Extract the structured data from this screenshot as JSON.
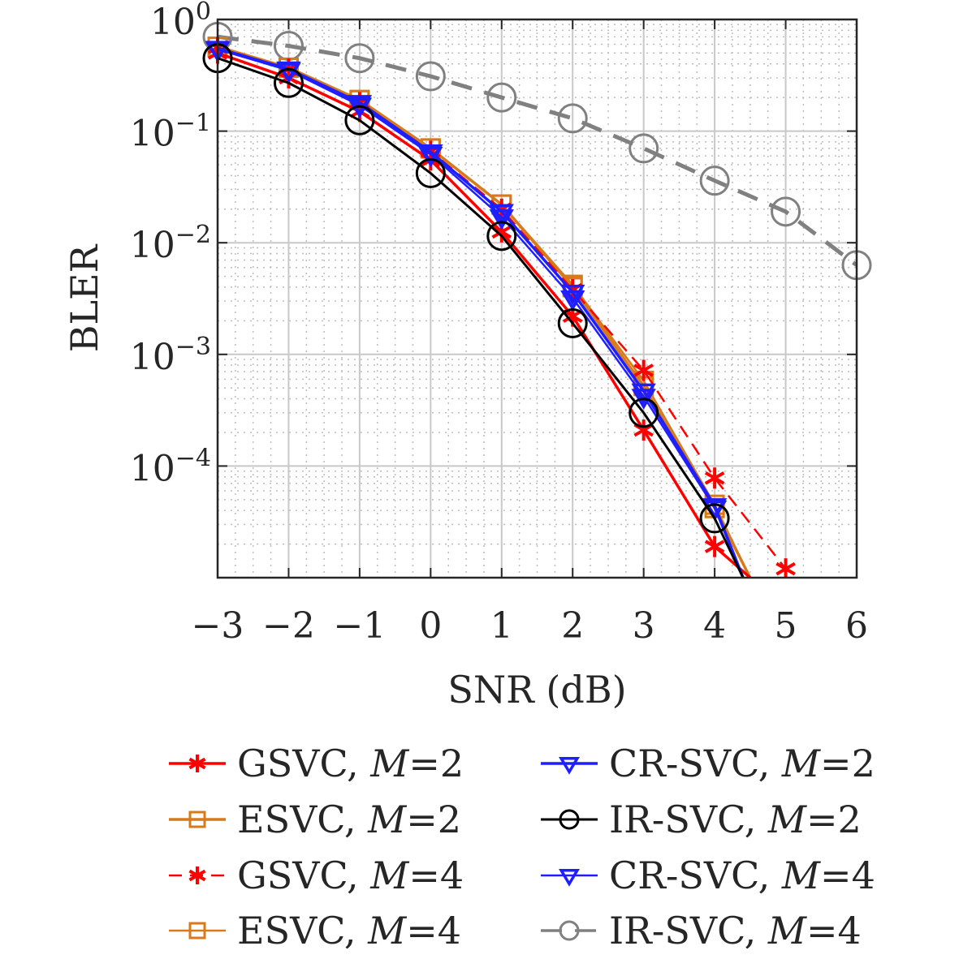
{
  "chart_data": {
    "type": "line",
    "xlabel": "SNR (dB)",
    "ylabel": "BLER",
    "x_ticks": [
      "−3",
      "−2",
      "−1",
      "0",
      "1",
      "2",
      "3",
      "4",
      "5",
      "6"
    ],
    "x_tick_values": [
      -3,
      -2,
      -1,
      0,
      1,
      2,
      3,
      4,
      5,
      6
    ],
    "y_ticks": [
      {
        "base": "10",
        "exp": "0"
      },
      {
        "base": "10",
        "exp": "−1"
      },
      {
        "base": "10",
        "exp": "−2"
      },
      {
        "base": "10",
        "exp": "−3"
      },
      {
        "base": "10",
        "exp": "−4"
      }
    ],
    "y_tick_values": [
      1,
      0.1,
      0.01,
      0.001,
      0.0001
    ],
    "xlim": [
      -3,
      6
    ],
    "ylim": [
      1e-05,
      1
    ],
    "y_scale": "log",
    "grid": true,
    "minor_grid": true,
    "legend_placement": "below",
    "series": [
      {
        "name": "GSVC, ",
        "m_label": "M",
        "m_value": "=2",
        "color": "#ff0000",
        "dash": "solid",
        "marker": "asterisk",
        "width": 3.5,
        "x": [
          -3,
          -2,
          -1,
          0,
          1,
          2,
          3,
          4,
          4.5
        ],
        "y": [
          0.5,
          0.3,
          0.15,
          0.055,
          0.0125,
          0.0022,
          0.00021,
          1.9e-05,
          1e-05
        ]
      },
      {
        "name": "ESVC, ",
        "m_label": "M",
        "m_value": "=2",
        "color": "#d97a1a",
        "dash": "solid",
        "marker": "square",
        "width": 3.5,
        "x": [
          -3,
          -2,
          -1,
          0,
          1,
          2,
          3,
          4,
          4.5
        ],
        "y": [
          0.57,
          0.37,
          0.19,
          0.07,
          0.022,
          0.004,
          0.00052,
          4.2e-05,
          1e-05
        ]
      },
      {
        "name": "GSVC, ",
        "m_label": "M",
        "m_value": "=4",
        "color": "#ff0000",
        "dash": "dash",
        "marker": "asterisk",
        "width": 2.5,
        "x": [
          -3,
          -2,
          -1,
          0,
          1,
          2,
          3,
          4,
          5
        ],
        "y": [
          0.56,
          0.36,
          0.18,
          0.066,
          0.02,
          0.0038,
          0.00072,
          7.8e-05,
          1.2e-05
        ]
      },
      {
        "name": "ESVC, ",
        "m_label": "M",
        "m_value": "=4",
        "color": "#d97a1a",
        "dash": "solid",
        "marker": "square",
        "width": 2.5,
        "x": [
          -3,
          -2,
          -1,
          0,
          1,
          2,
          3,
          4,
          4.5
        ],
        "y": [
          0.57,
          0.37,
          0.19,
          0.07,
          0.022,
          0.0042,
          0.00058,
          4.5e-05,
          1e-05
        ]
      },
      {
        "name": "CR-SVC, ",
        "m_label": "M",
        "m_value": "=2",
        "color": "#1e1eff",
        "dash": "solid",
        "marker": "triangle-down",
        "width": 3.5,
        "x": [
          -3,
          -2,
          -1,
          0,
          1,
          2,
          3,
          4,
          4.4
        ],
        "y": [
          0.55,
          0.36,
          0.18,
          0.065,
          0.019,
          0.0036,
          0.00047,
          4.4e-05,
          1e-05
        ]
      },
      {
        "name": "IR-SVC, ",
        "m_label": "M",
        "m_value": "=2",
        "color": "#000000",
        "dash": "solid",
        "marker": "circle",
        "width": 3,
        "x": [
          -3,
          -2,
          -1,
          0,
          1,
          2,
          3,
          4,
          4.4
        ],
        "y": [
          0.45,
          0.27,
          0.125,
          0.042,
          0.0115,
          0.0019,
          0.0003,
          3.4e-05,
          1e-05
        ]
      },
      {
        "name": "CR-SVC, ",
        "m_label": "M",
        "m_value": "=4",
        "color": "#1e1eff",
        "dash": "solid",
        "marker": "triangle-down",
        "width": 2.5,
        "x": [
          -3,
          -2,
          -1,
          0,
          1,
          2,
          3,
          4,
          4.4
        ],
        "y": [
          0.54,
          0.35,
          0.17,
          0.062,
          0.017,
          0.0032,
          0.00042,
          4.2e-05,
          1e-05
        ]
      },
      {
        "name": "IR-SVC, ",
        "m_label": "M",
        "m_value": "=4",
        "color": "#808080",
        "dash": "longdash",
        "marker": "circle",
        "width": 5,
        "x": [
          -3,
          -2,
          -1,
          0,
          1,
          2,
          3,
          4,
          5,
          6
        ],
        "y": [
          0.7,
          0.58,
          0.45,
          0.31,
          0.2,
          0.13,
          0.07,
          0.036,
          0.019,
          0.0063
        ]
      }
    ]
  }
}
